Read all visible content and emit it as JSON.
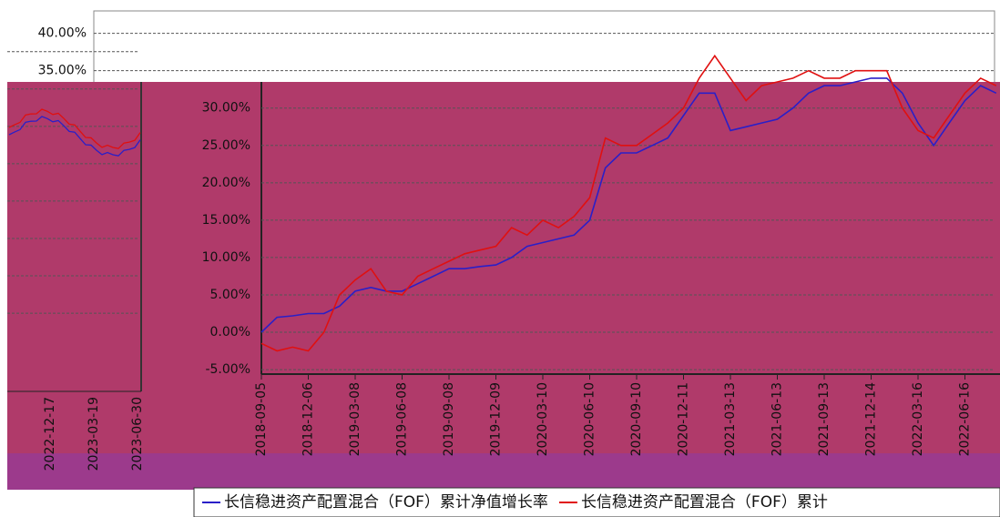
{
  "chart_data": {
    "type": "line",
    "categories": [
      "2018-09-05",
      null,
      null,
      "2018-12-06",
      null,
      null,
      "2019-03-08",
      null,
      null,
      "2019-06-08",
      null,
      null,
      "2019-09-08",
      null,
      null,
      "2019-12-09",
      null,
      null,
      "2020-03-10",
      null,
      null,
      "2020-06-10",
      null,
      null,
      "2020-09-10",
      null,
      null,
      "2020-12-11",
      null,
      null,
      "2021-03-13",
      null,
      null,
      "2021-06-13",
      null,
      null,
      "2021-09-13",
      null,
      null,
      "2021-12-14",
      null,
      null,
      "2022-03-16",
      null,
      null,
      "2022-06-16",
      null,
      null
    ],
    "series": [
      {
        "name": "长信稳进资产配置混合（FOF）累计净值增长率",
        "color": "#2a1fc8",
        "values": [
          0.0,
          2.0,
          2.2,
          2.5,
          2.5,
          3.5,
          5.5,
          6.0,
          5.5,
          5.5,
          6.5,
          7.5,
          8.5,
          8.5,
          8.8,
          9.0,
          10,
          11.5,
          12,
          12.5,
          13,
          15,
          22,
          24,
          24,
          25,
          26,
          29,
          32,
          32,
          27,
          27.5,
          28,
          28.5,
          30,
          32,
          33,
          33,
          33.5,
          34,
          34,
          32,
          28,
          25,
          28,
          31,
          33,
          32
        ]
      },
      {
        "name": "长信稳进资产配置混合（FOF）累计",
        "color": "#e01010",
        "values": [
          -1.5,
          -2.5,
          -2,
          -2.5,
          0,
          5,
          7,
          8.5,
          5.5,
          5,
          7.5,
          8.5,
          9.5,
          10.5,
          11,
          11.5,
          14,
          13,
          15,
          14,
          15.5,
          18,
          26,
          25,
          25,
          26.5,
          28,
          30,
          34,
          37,
          34,
          31,
          33,
          33.5,
          34,
          35,
          34,
          34,
          35,
          35,
          35,
          30,
          27,
          26,
          29,
          32,
          34,
          33
        ]
      }
    ],
    "ylim": [
      -5.6,
      43
    ],
    "yticks": [
      {
        "value": -5,
        "label": "-5.00%"
      },
      {
        "value": 0,
        "label": "0.00%"
      },
      {
        "value": 5,
        "label": "5.00%"
      },
      {
        "value": 10,
        "label": "10.00%"
      },
      {
        "value": 15,
        "label": "15.00%"
      },
      {
        "value": 20,
        "label": "20.00%"
      },
      {
        "value": 25,
        "label": "25.00%"
      },
      {
        "value": 30,
        "label": "30.00%"
      },
      {
        "value": 35,
        "label": "35.00%"
      },
      {
        "value": 40,
        "label": "40.00%"
      }
    ],
    "grid": true
  },
  "ghost_panel": {
    "x_labels": [
      "2022-12-17",
      "2023-03-19",
      "2023-06-30"
    ]
  }
}
